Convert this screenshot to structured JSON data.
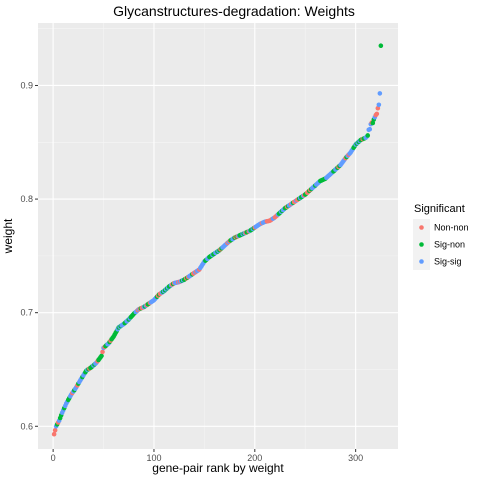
{
  "chart_data": {
    "type": "scatter",
    "title": "Glycanstructures-degradation: Weights",
    "xlabel": "gene-pair rank by weight",
    "ylabel": "weight",
    "xlim": [
      -15,
      342
    ],
    "ylim": [
      0.58,
      0.955
    ],
    "x_ticks": [
      0,
      100,
      200,
      300
    ],
    "x_tick_labels": [
      "0",
      "100",
      "200",
      "300"
    ],
    "y_ticks": [
      0.6,
      0.7,
      0.8,
      0.9
    ],
    "y_tick_labels": [
      "0.6",
      "0.7",
      "0.8",
      "0.9"
    ],
    "grid": true,
    "legend": {
      "title": "Significant",
      "position": "right",
      "entries": [
        {
          "label": "Non-non",
          "color": "#F8766D"
        },
        {
          "label": "Sig-non",
          "color": "#00BA38"
        },
        {
          "label": "Sig-sig",
          "color": "#619CFF"
        }
      ]
    },
    "curve_knots": [
      [
        1,
        0.593
      ],
      [
        3,
        0.6
      ],
      [
        6,
        0.605
      ],
      [
        9,
        0.612
      ],
      [
        13,
        0.62
      ],
      [
        18,
        0.628
      ],
      [
        22,
        0.633
      ],
      [
        28,
        0.642
      ],
      [
        33,
        0.649
      ],
      [
        38,
        0.652
      ],
      [
        43,
        0.656
      ],
      [
        48,
        0.662
      ],
      [
        50,
        0.669
      ],
      [
        55,
        0.673
      ],
      [
        60,
        0.679
      ],
      [
        65,
        0.687
      ],
      [
        70,
        0.69
      ],
      [
        75,
        0.694
      ],
      [
        80,
        0.699
      ],
      [
        85,
        0.703
      ],
      [
        90,
        0.705
      ],
      [
        95,
        0.708
      ],
      [
        100,
        0.711
      ],
      [
        105,
        0.716
      ],
      [
        110,
        0.719
      ],
      [
        115,
        0.723
      ],
      [
        120,
        0.726
      ],
      [
        125,
        0.727
      ],
      [
        130,
        0.729
      ],
      [
        135,
        0.732
      ],
      [
        140,
        0.735
      ],
      [
        145,
        0.738
      ],
      [
        150,
        0.745
      ],
      [
        155,
        0.749
      ],
      [
        160,
        0.752
      ],
      [
        165,
        0.755
      ],
      [
        170,
        0.759
      ],
      [
        175,
        0.763
      ],
      [
        180,
        0.766
      ],
      [
        185,
        0.768
      ],
      [
        190,
        0.77
      ],
      [
        195,
        0.772
      ],
      [
        200,
        0.775
      ],
      [
        205,
        0.778
      ],
      [
        210,
        0.78
      ],
      [
        215,
        0.781
      ],
      [
        220,
        0.784
      ],
      [
        225,
        0.788
      ],
      [
        230,
        0.792
      ],
      [
        235,
        0.795
      ],
      [
        240,
        0.798
      ],
      [
        245,
        0.801
      ],
      [
        250,
        0.804
      ],
      [
        255,
        0.808
      ],
      [
        260,
        0.812
      ],
      [
        265,
        0.816
      ],
      [
        270,
        0.818
      ],
      [
        275,
        0.822
      ],
      [
        280,
        0.826
      ],
      [
        285,
        0.83
      ],
      [
        290,
        0.836
      ],
      [
        295,
        0.841
      ],
      [
        300,
        0.848
      ],
      [
        305,
        0.852
      ],
      [
        310,
        0.854
      ],
      [
        313,
        0.857
      ],
      [
        315,
        0.866
      ],
      [
        318,
        0.87
      ],
      [
        321,
        0.876
      ],
      [
        323,
        0.884
      ],
      [
        324,
        0.893
      ],
      [
        325,
        0.935
      ]
    ],
    "highlight_points": [
      {
        "x": 1,
        "y": 0.593,
        "group": "Non-non"
      },
      {
        "x": 313,
        "y": 0.861,
        "group": "Sig-sig"
      },
      {
        "x": 317,
        "y": 0.867,
        "group": "Sig-non"
      },
      {
        "x": 321,
        "y": 0.875,
        "group": "Non-non"
      },
      {
        "x": 323,
        "y": 0.883,
        "group": "Sig-sig"
      },
      {
        "x": 324,
        "y": 0.893,
        "group": "Sig-sig"
      },
      {
        "x": 325,
        "y": 0.935,
        "group": "Sig-non"
      }
    ],
    "n_points": 325
  }
}
